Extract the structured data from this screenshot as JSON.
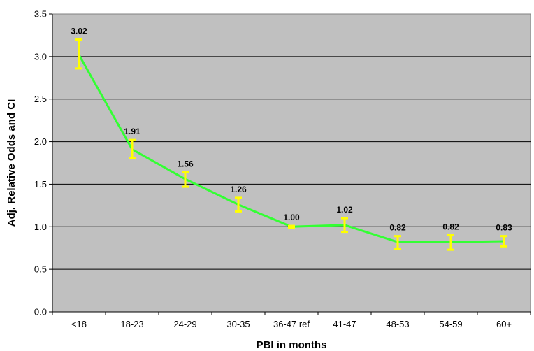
{
  "chart_data": {
    "type": "line",
    "categories": [
      "<18",
      "18-23",
      "24-29",
      "30-35",
      "36-47 ref",
      "41-47",
      "48-53",
      "54-59",
      "60+"
    ],
    "series": [
      {
        "values": [
          3.02,
          1.91,
          1.56,
          1.26,
          1.0,
          1.02,
          0.82,
          0.82,
          0.83
        ],
        "ci_low": [
          2.86,
          1.81,
          1.47,
          1.18,
          0.99,
          0.94,
          0.74,
          0.73,
          0.77
        ],
        "ci_high": [
          3.2,
          2.02,
          1.64,
          1.34,
          1.01,
          1.1,
          0.89,
          0.9,
          0.89
        ],
        "data_labels": [
          "3.02",
          "1.91",
          "1.56",
          "1.26",
          "1.00",
          "1.02",
          "0.82",
          "0.82",
          "0.83"
        ]
      }
    ],
    "xlabel": "PBI in months",
    "ylabel": "Adj. Relative Odds and CI",
    "ylim": [
      0,
      3.5
    ],
    "yticks": [
      "0.0",
      "0.5",
      "1.0",
      "1.5",
      "2.0",
      "2.5",
      "3.0",
      "3.5"
    ],
    "grid": true,
    "legend": "none",
    "colors": {
      "plot_background": "#c0c0c0",
      "line": "#33ff33",
      "error_bars": "#ffff00",
      "gridlines": "#000000"
    }
  }
}
